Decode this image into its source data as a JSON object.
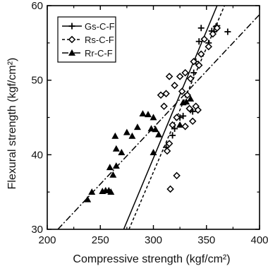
{
  "chart_data": {
    "type": "scatter",
    "title": "",
    "xlabel": "Compressive strength (kgf/cm²)",
    "ylabel": "Flexural strength (kgf/cm²)",
    "xlim": [
      200,
      400
    ],
    "ylim": [
      30,
      60
    ],
    "xticks": [
      200,
      250,
      300,
      350,
      400
    ],
    "yticks": [
      30,
      40,
      50,
      60
    ],
    "grid": false,
    "legend_position": "top-left",
    "series": [
      {
        "name": "Gs-C-F",
        "marker": "plus",
        "line_style": "solid",
        "color": "#000000",
        "fit_line": [
          [
            272,
            30
          ],
          [
            360,
            60
          ]
        ],
        "points": [
          [
            312,
            41
          ],
          [
            318,
            42.6
          ],
          [
            320,
            43.5
          ],
          [
            325,
            45
          ],
          [
            328,
            45.2
          ],
          [
            335,
            46
          ],
          [
            337,
            45.8
          ],
          [
            338,
            51
          ],
          [
            340,
            52.5
          ],
          [
            343,
            55.2
          ],
          [
            345,
            57
          ],
          [
            352,
            55
          ],
          [
            355,
            56.6
          ],
          [
            357,
            56.5
          ],
          [
            359,
            57.2
          ],
          [
            360,
            57.3
          ],
          [
            370,
            56.5
          ]
        ]
      },
      {
        "name": "Rs-C-F",
        "marker": "diamond",
        "line_style": "dashed",
        "color": "#000000",
        "fit_line": [
          [
            277,
            30
          ],
          [
            367,
            60
          ]
        ],
        "points": [
          [
            307,
            48
          ],
          [
            310,
            46.5
          ],
          [
            312,
            48.2
          ],
          [
            315,
            50.5
          ],
          [
            316,
            35.4
          ],
          [
            318,
            44
          ],
          [
            320,
            49.3
          ],
          [
            322,
            37.2
          ],
          [
            322,
            45
          ],
          [
            325,
            50.5
          ],
          [
            327,
            48.5
          ],
          [
            330,
            51
          ],
          [
            332,
            48
          ],
          [
            335,
            50.2
          ],
          [
            338,
            52.5
          ],
          [
            340,
            46.5
          ],
          [
            342,
            46
          ],
          [
            343,
            52
          ],
          [
            345,
            53.5
          ],
          [
            348,
            55.5
          ],
          [
            352,
            54.5
          ],
          [
            356,
            56.2
          ],
          [
            360,
            57
          ],
          [
            313,
            40.5
          ],
          [
            315,
            41.5
          ],
          [
            330,
            43.8
          ],
          [
            334,
            46.2
          ],
          [
            337,
            44.5
          ]
        ]
      },
      {
        "name": "Rr-C-F",
        "marker": "triangle",
        "line_style": "dashdot",
        "color": "#000000",
        "fit_line": [
          [
            210,
            30
          ],
          [
            400,
            58.8
          ]
        ],
        "points": [
          [
            238,
            34
          ],
          [
            242,
            35
          ],
          [
            252,
            35.1
          ],
          [
            255,
            35.2
          ],
          [
            258,
            35.2
          ],
          [
            260,
            35
          ],
          [
            262,
            37.3
          ],
          [
            265,
            38.5
          ],
          [
            259,
            38.3
          ],
          [
            265,
            40.8
          ],
          [
            270,
            40.3
          ],
          [
            264,
            42.5
          ],
          [
            280,
            42.5
          ],
          [
            285,
            43.7
          ],
          [
            290,
            45.5
          ],
          [
            295,
            45.4
          ],
          [
            300,
            45
          ],
          [
            298,
            43.5
          ],
          [
            302,
            43.4
          ],
          [
            305,
            42.7
          ],
          [
            300,
            40.3
          ],
          [
            275,
            43
          ],
          [
            325,
            44
          ],
          [
            328,
            47
          ],
          [
            331,
            47.1
          ],
          [
            335,
            47.5
          ]
        ]
      }
    ]
  }
}
